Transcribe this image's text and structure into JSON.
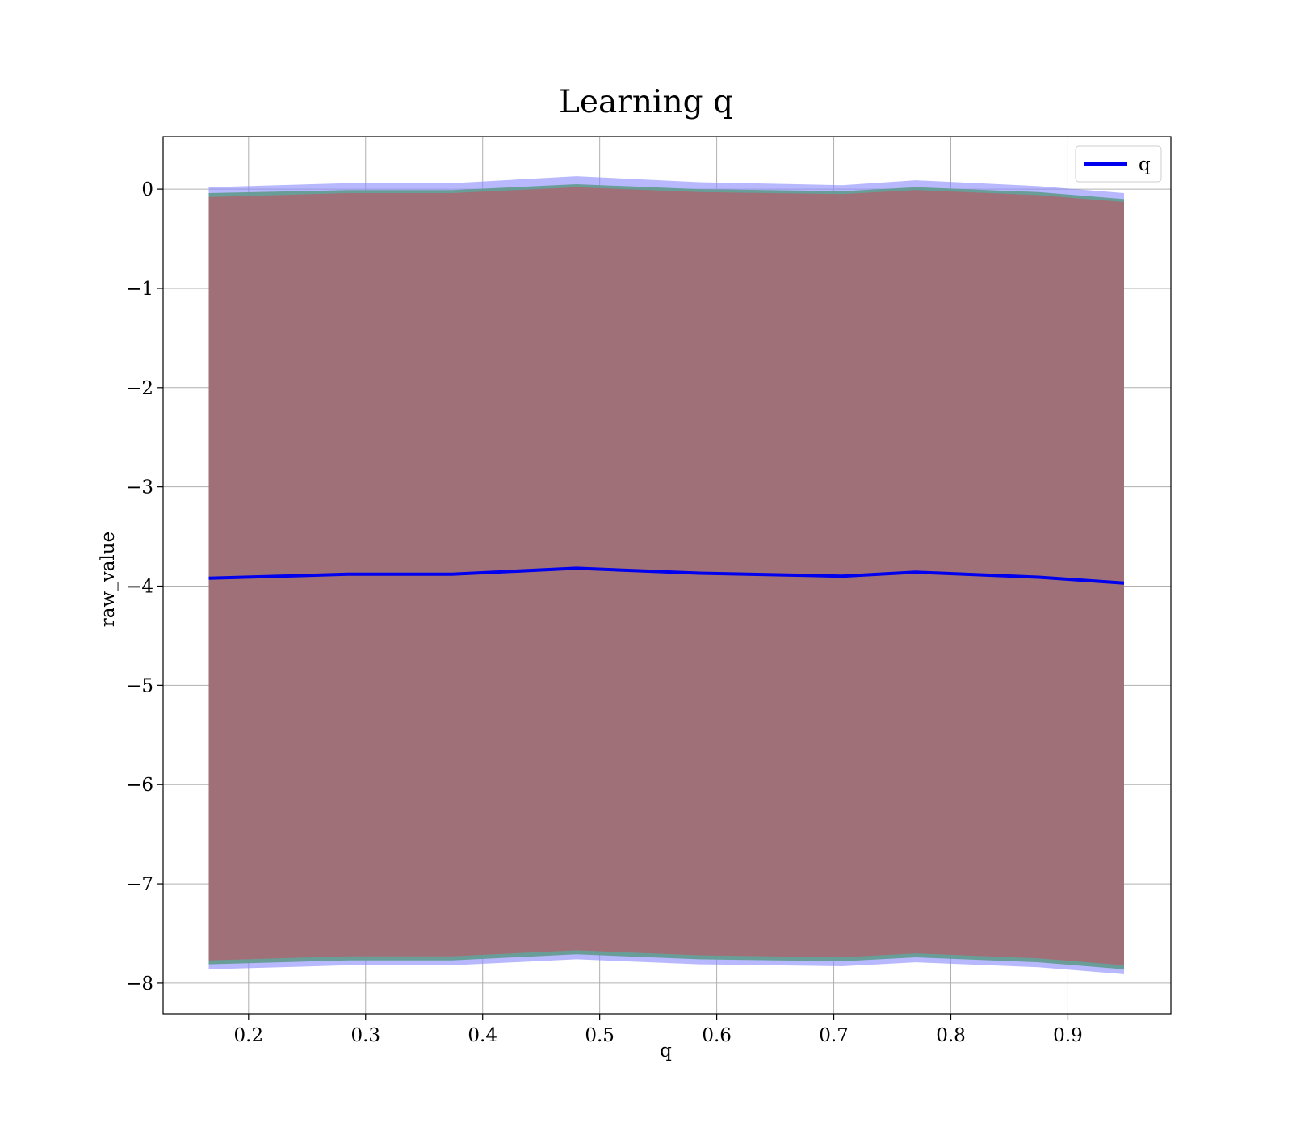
{
  "chart_data": {
    "type": "line",
    "title": "Learning q",
    "xlabel": "q",
    "ylabel": "raw_value",
    "xlim": [
      0.127,
      0.988
    ],
    "ylim": [
      -8.31,
      0.53
    ],
    "x_ticks": [
      0.2,
      0.3,
      0.4,
      0.5,
      0.6,
      0.7,
      0.8,
      0.9
    ],
    "x_tick_labels": [
      "0.2",
      "0.3",
      "0.4",
      "0.5",
      "0.6",
      "0.7",
      "0.8",
      "0.9"
    ],
    "y_ticks": [
      0,
      -1,
      -2,
      -3,
      -4,
      -5,
      -6,
      -7,
      -8
    ],
    "y_tick_labels": [
      "0",
      "−1",
      "−2",
      "−3",
      "−4",
      "−5",
      "−6",
      "−7",
      "−8"
    ],
    "grid": true,
    "legend": {
      "position": "top-right",
      "entries": [
        "q"
      ]
    },
    "x": [
      0.166,
      0.285,
      0.374,
      0.48,
      0.585,
      0.707,
      0.77,
      0.875,
      0.948
    ],
    "series": [
      {
        "name": "q",
        "values": [
          -3.92,
          -3.88,
          -3.88,
          -3.82,
          -3.87,
          -3.9,
          -3.86,
          -3.91,
          -3.97
        ],
        "color": "#0000ee"
      }
    ],
    "bands": [
      {
        "role": "outer",
        "color": "#8888ff",
        "opacity": 0.6,
        "upper": [
          0.02,
          0.06,
          0.06,
          0.13,
          0.07,
          0.04,
          0.09,
          0.03,
          -0.04
        ],
        "lower": [
          -7.86,
          -7.82,
          -7.82,
          -7.76,
          -7.81,
          -7.83,
          -7.79,
          -7.84,
          -7.91
        ]
      },
      {
        "role": "middle",
        "color": "#5f9b8c",
        "opacity": 0.9,
        "upper": [
          -0.04,
          -0.01,
          -0.01,
          0.05,
          0.0,
          -0.02,
          0.02,
          -0.03,
          -0.1
        ],
        "lower": [
          -7.81,
          -7.77,
          -7.77,
          -7.71,
          -7.76,
          -7.78,
          -7.74,
          -7.79,
          -7.86
        ]
      },
      {
        "role": "inner",
        "color": "#a07078",
        "opacity": 1.0,
        "upper": [
          -0.08,
          -0.04,
          -0.04,
          0.02,
          -0.03,
          -0.05,
          -0.01,
          -0.06,
          -0.13
        ],
        "lower": [
          -7.77,
          -7.73,
          -7.73,
          -7.67,
          -7.72,
          -7.74,
          -7.7,
          -7.75,
          -7.82
        ]
      }
    ]
  }
}
